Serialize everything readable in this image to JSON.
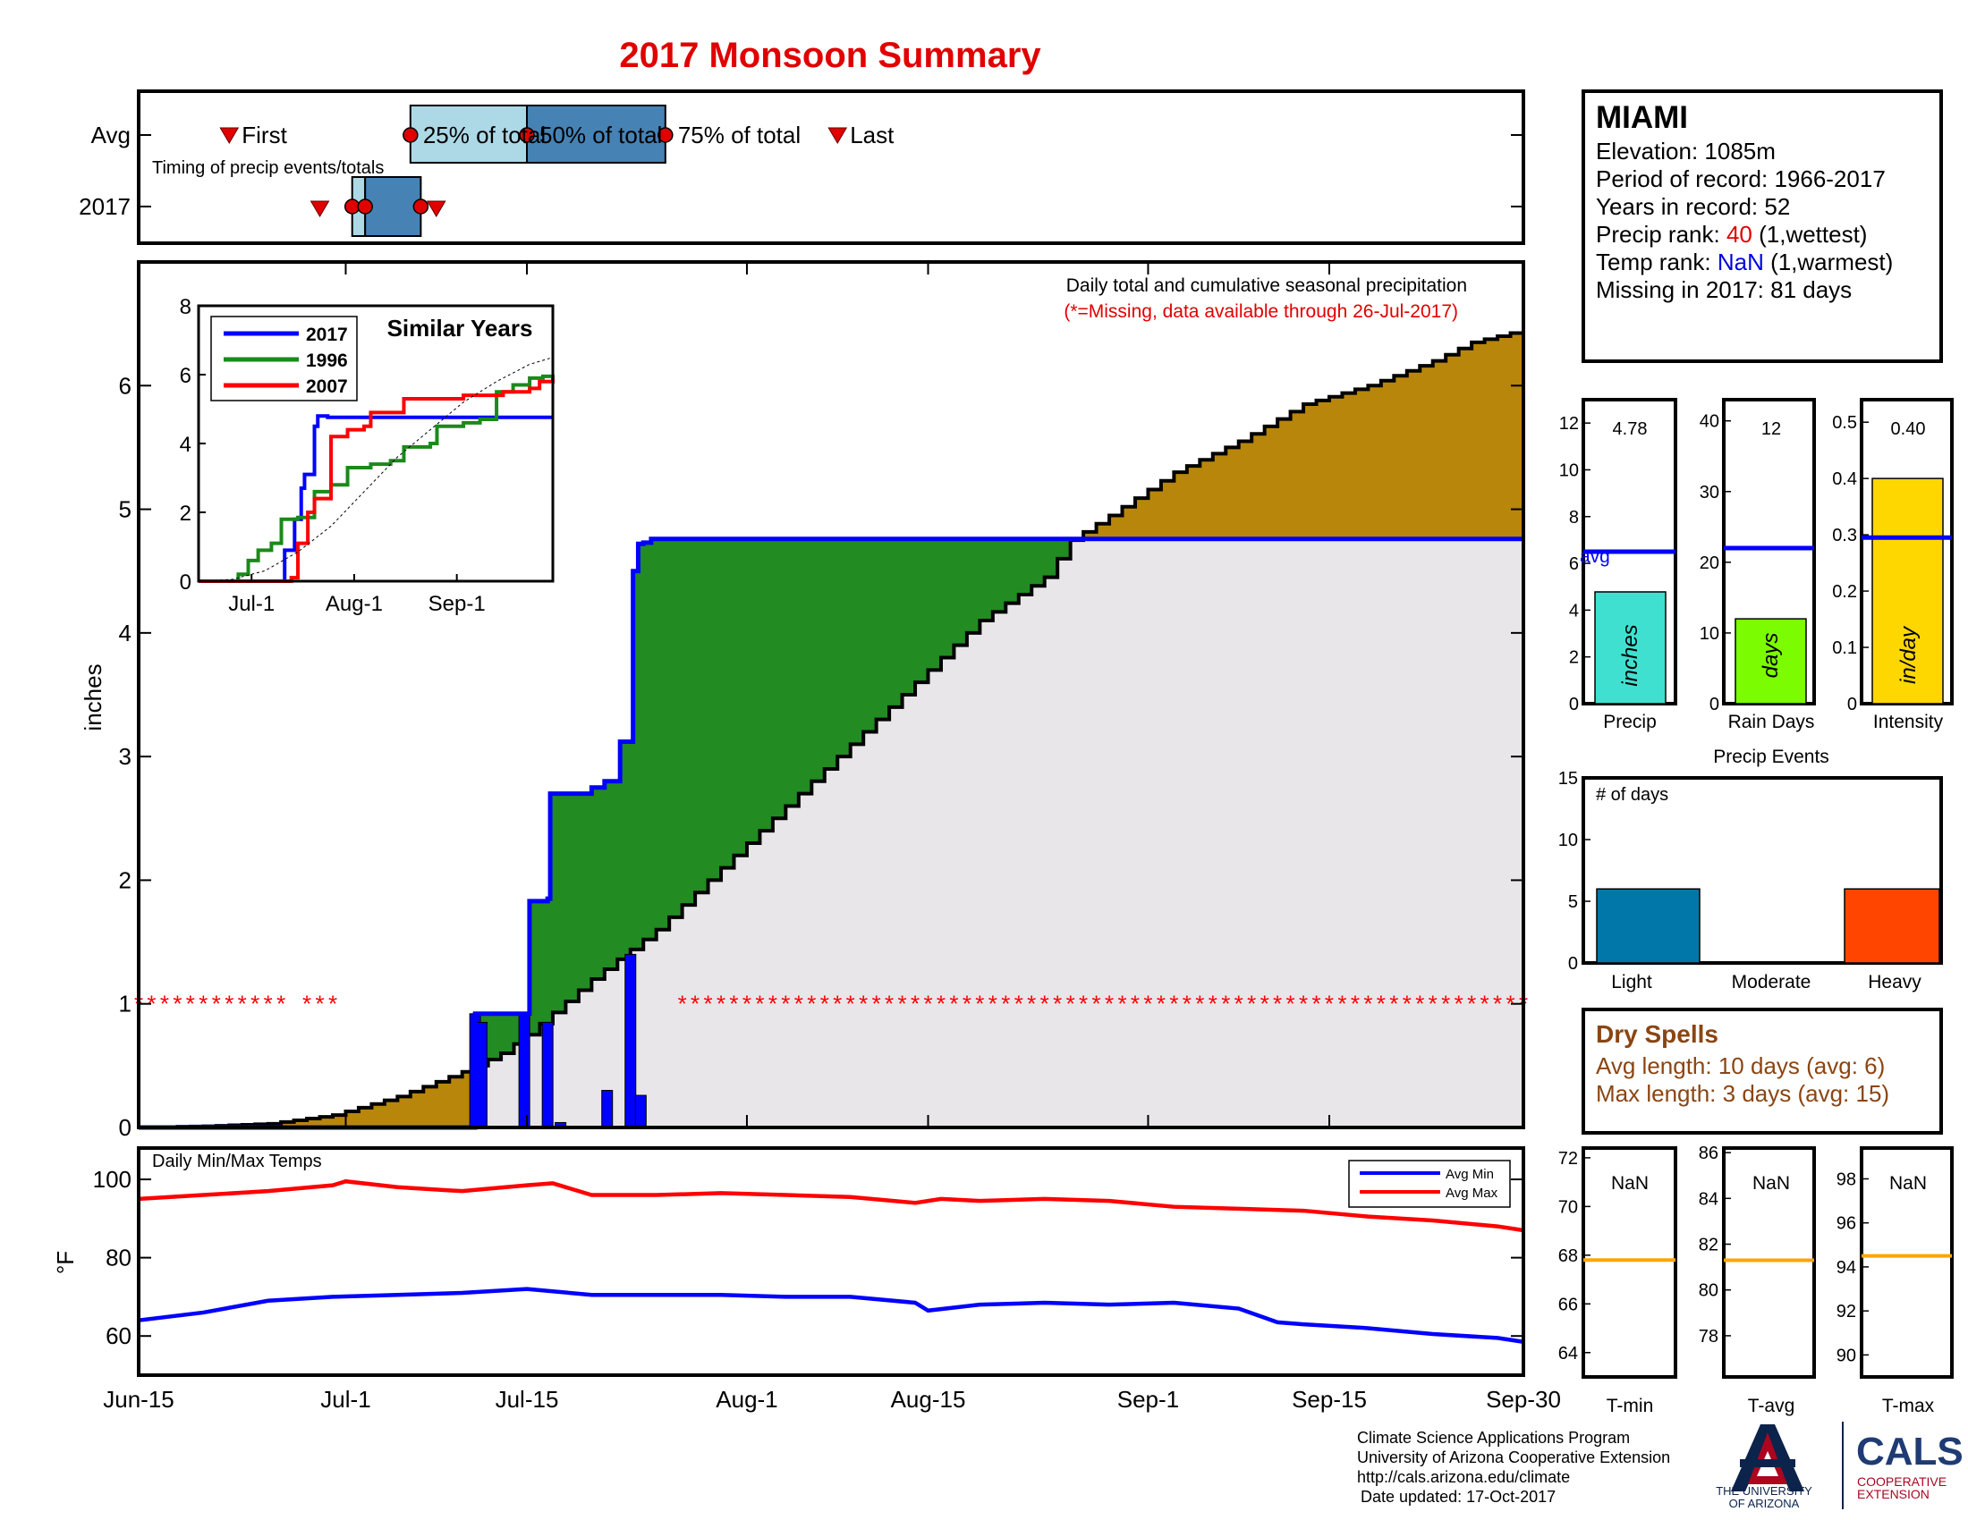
{
  "title": "2017 Monsoon Summary",
  "timing": {
    "row_avg": "Avg",
    "row_year": "2017",
    "subtitle": "Timing of precip events/totals",
    "first": "First",
    "last": "Last",
    "p25": "25% of total",
    "p50": "50% of total",
    "p75": "75% of total",
    "avg_days": {
      "first": 7,
      "p25": 21,
      "p50": 30,
      "p75": 40.7,
      "last": 54
    },
    "year_days": {
      "first": 14,
      "p25": 16.5,
      "p50": 17.5,
      "p75": 21.8,
      "last": 23
    }
  },
  "station": {
    "name": "MIAMI",
    "elevation_label": "Elevation: ",
    "elevation": "1085m",
    "period_label": "Period of record: ",
    "period": "1966-2017",
    "years_label": "Years in record: ",
    "years": "52",
    "precip_rank_label": "Precip rank: ",
    "precip_rank": "40",
    "precip_rank_note": " (1,wettest)",
    "temp_rank_label": "Temp rank: ",
    "temp_rank": "NaN",
    "temp_rank_note": " (1,warmest)",
    "missing_label": "Missing in 2017: ",
    "missing": "81 days"
  },
  "main_chart": {
    "note": "Daily total and cumulative seasonal precipitation",
    "missing_note": "(*=Missing, data available through 26-Jul-2017)",
    "ylabel": "inches",
    "yticks": [
      "0",
      "1",
      "2",
      "3",
      "4",
      "5",
      "6"
    ],
    "xticks": [
      "Jun-15",
      "Jul-1",
      "Jul-15",
      "Aug-1",
      "Aug-15",
      "Sep-1",
      "Sep-15",
      "Sep-30"
    ]
  },
  "inset": {
    "title": "Similar Years",
    "legend": [
      "2017",
      "1996",
      "2007"
    ],
    "yticks": [
      "0",
      "2",
      "4",
      "6",
      "8"
    ],
    "xticks": [
      "Jul-1",
      "Aug-1",
      "Sep-1"
    ]
  },
  "stats": {
    "precip": {
      "value": "4.78",
      "unit": "inches",
      "label": "Precip",
      "yticks": [
        "0",
        "2",
        "4",
        "6",
        "8",
        "10",
        "12"
      ],
      "avg_label": "avg"
    },
    "raindays": {
      "value": "12",
      "unit": "days",
      "label": "Rain Days",
      "yticks": [
        "0",
        "10",
        "20",
        "30",
        "40"
      ]
    },
    "intensity": {
      "value": "0.40",
      "unit": "in/day",
      "label": "Intensity",
      "yticks": [
        "0",
        "0.1",
        "0.2",
        "0.3",
        "0.4",
        "0.5"
      ]
    }
  },
  "events": {
    "title": "Precip Events",
    "ylabel": "# of days",
    "yticks": [
      "0",
      "5",
      "10",
      "15"
    ],
    "labels": [
      "Light",
      "Moderate",
      "Heavy"
    ]
  },
  "dry_spells": {
    "title": "Dry Spells",
    "avg": "Avg length: 10 days (avg: 6)",
    "max": "Max length: 3 days (avg: 15)"
  },
  "temps": {
    "title": "Daily Min/Max Temps",
    "ylabel": "°F",
    "yticks": [
      "60",
      "80",
      "100"
    ],
    "legend_min": "Avg Min",
    "legend_max": "Avg Max"
  },
  "temp_boxes": [
    {
      "label": "T-min",
      "value": "NaN",
      "yticks": [
        "64",
        "66",
        "68",
        "70",
        "72"
      ]
    },
    {
      "label": "T-avg",
      "value": "NaN",
      "yticks": [
        "78",
        "80",
        "82",
        "84",
        "86"
      ]
    },
    {
      "label": "T-max",
      "value": "NaN",
      "yticks": [
        "90",
        "92",
        "94",
        "96",
        "98"
      ]
    }
  ],
  "footer": {
    "line1": "Climate Science Applications Program",
    "line2": "University of Arizona Cooperative Extension",
    "line3": "http://cals.arizona.edu/climate",
    "line4": "Date updated: 17-Oct-2017",
    "ua_line1": "THE UNIVERSITY",
    "ua_line2": "OF ARIZONA",
    "cals": "CALS",
    "coop1": "COOPERATIVE",
    "coop2": "EXTENSION"
  },
  "colors": {
    "avg_fill": "#b8860b",
    "above_fill": "#228b22",
    "base_fill": "#e8e6e8",
    "blue": "#0000ff",
    "red": "#ff0000",
    "green": "#1a8a1a",
    "q_light": "#add8e6",
    "q_dark": "#4682b4",
    "cyan_bar": "#40e0d0",
    "green_bar": "#7cfc00",
    "gold_bar": "#ffd700",
    "light_bar": "#0077a8",
    "heavy_bar": "#ff4500",
    "dry_brown": "#8b4513",
    "orange_line": "#ffa500",
    "ua_navy": "#0c234b",
    "ua_red": "#ab0520"
  },
  "chart_data": [
    {
      "type": "area",
      "title": "Daily total and cumulative seasonal precipitation",
      "xlabel": "",
      "ylabel": "inches",
      "xlim": [
        0,
        107
      ],
      "ylim": [
        0,
        7
      ],
      "x_tick_days": [
        0,
        16,
        30,
        47,
        61,
        78,
        92,
        107
      ],
      "avg_cumulative": {
        "x": [
          0,
          5,
          10,
          15,
          20,
          25,
          28,
          30,
          35,
          40,
          45,
          50,
          55,
          60,
          65,
          70,
          72,
          75,
          80,
          85,
          90,
          95,
          100,
          103,
          107
        ],
        "y": [
          0,
          0.01,
          0.03,
          0.1,
          0.25,
          0.45,
          0.6,
          0.75,
          1.2,
          1.6,
          2.1,
          2.6,
          3.1,
          3.6,
          4.1,
          4.45,
          4.75,
          4.95,
          5.3,
          5.55,
          5.85,
          6.0,
          6.2,
          6.35,
          6.45
        ]
      },
      "series_2017_cumulative": {
        "x": [
          0,
          25.8,
          26,
          30,
          30.2,
          31.6,
          31.8,
          35,
          36,
          37.2,
          38.2,
          38.6,
          39,
          39.6,
          107
        ],
        "y": [
          0,
          0,
          0.92,
          0.92,
          1.83,
          1.85,
          2.7,
          2.75,
          2.8,
          3.12,
          4.5,
          4.72,
          4.73,
          4.76,
          4.76
        ]
      },
      "daily_2017": {
        "days": [
          26,
          26.5,
          29.8,
          31.6,
          32.6,
          36.2,
          38,
          38.8
        ],
        "values": [
          0.92,
          0.85,
          0.92,
          0.85,
          0.04,
          0.3,
          1.4,
          0.26
        ]
      },
      "missing_days": [
        0,
        1,
        2,
        3,
        4,
        5,
        6,
        7,
        8,
        9,
        10,
        11,
        13,
        14,
        15,
        42,
        43,
        44,
        45,
        46,
        47,
        48,
        49,
        50,
        51,
        52,
        53,
        54,
        55,
        56,
        57,
        58,
        59,
        60,
        61,
        62,
        63,
        64,
        65,
        66,
        67,
        68,
        69,
        70,
        71,
        72,
        73,
        74,
        75,
        76,
        77,
        78,
        79,
        80,
        81,
        82,
        83,
        84,
        85,
        86,
        87,
        88,
        89,
        90,
        91,
        92,
        93,
        94,
        95,
        96,
        97,
        98,
        99,
        100,
        101,
        102,
        103,
        104,
        105,
        106,
        107
      ]
    },
    {
      "type": "line",
      "title": "Similar Years",
      "ylim": [
        0,
        8
      ],
      "x_tick_days": [
        16,
        47,
        78
      ],
      "series": [
        {
          "name": "2017",
          "x": [
            25,
            26,
            29,
            31,
            32,
            35,
            36,
            39,
            107
          ],
          "y": [
            0,
            0.9,
            1.8,
            2.7,
            3.1,
            4.5,
            4.8,
            4.76,
            4.76
          ]
        },
        {
          "name": "1996",
          "x": [
            0,
            12,
            15,
            18,
            22,
            25,
            30,
            35,
            40,
            45,
            52,
            58,
            62,
            70,
            72,
            80,
            85,
            90,
            95,
            100,
            104,
            107
          ],
          "y": [
            0,
            0.2,
            0.6,
            0.9,
            1.1,
            1.8,
            1.85,
            2.6,
            2.8,
            3.3,
            3.4,
            3.5,
            3.9,
            4.0,
            4.5,
            4.6,
            4.7,
            5.5,
            5.7,
            5.9,
            5.95,
            6.0
          ]
        },
        {
          "name": "2007",
          "x": [
            0,
            28,
            30,
            33,
            35,
            38,
            40,
            45,
            50,
            52,
            58,
            62,
            70,
            75,
            80,
            85,
            92,
            95,
            100,
            103,
            107
          ],
          "y": [
            0,
            0.1,
            1.1,
            2.0,
            2.4,
            2.4,
            4.2,
            4.4,
            4.5,
            4.9,
            4.9,
            5.3,
            5.3,
            5.3,
            5.4,
            5.4,
            5.5,
            5.5,
            5.6,
            5.8,
            5.9
          ]
        },
        {
          "name": "average",
          "x": [
            0,
            10,
            20,
            30,
            40,
            50,
            60,
            70,
            80,
            90,
            100,
            107
          ],
          "y": [
            0,
            0.05,
            0.3,
            0.85,
            1.6,
            2.6,
            3.6,
            4.4,
            5.2,
            5.8,
            6.3,
            6.5
          ]
        }
      ]
    },
    {
      "type": "bar",
      "title": "Precip",
      "categories": [
        "Precip"
      ],
      "values": [
        4.78
      ],
      "avg": 6.5,
      "ylim": [
        0,
        13
      ]
    },
    {
      "type": "bar",
      "title": "Rain Days",
      "categories": [
        "Rain Days"
      ],
      "values": [
        12
      ],
      "avg": 22,
      "ylim": [
        0,
        43
      ]
    },
    {
      "type": "bar",
      "title": "Intensity",
      "categories": [
        "Intensity"
      ],
      "values": [
        0.4
      ],
      "avg": 0.295,
      "ylim": [
        0,
        0.54
      ]
    },
    {
      "type": "bar",
      "title": "Precip Events",
      "categories": [
        "Light",
        "Moderate",
        "Heavy"
      ],
      "values": [
        6,
        0,
        6
      ],
      "ylim": [
        0,
        15
      ]
    },
    {
      "type": "line",
      "title": "Daily Min/Max Temps",
      "ylabel": "°F",
      "xlim": [
        0,
        107
      ],
      "ylim": [
        50,
        108
      ],
      "series": [
        {
          "name": "Avg Max",
          "x": [
            0,
            5,
            10,
            15,
            16,
            20,
            25,
            30,
            32,
            35,
            40,
            45,
            50,
            55,
            60,
            62,
            65,
            70,
            75,
            80,
            85,
            90,
            95,
            100,
            105,
            107
          ],
          "y": [
            95,
            96,
            97,
            98.5,
            99.5,
            98,
            97,
            98.5,
            99,
            96,
            96,
            96.5,
            96,
            95.5,
            94,
            95,
            94.5,
            95,
            94.5,
            93,
            92.5,
            92,
            90.5,
            89.5,
            88,
            87
          ]
        },
        {
          "name": "Avg Min",
          "x": [
            0,
            5,
            10,
            15,
            20,
            25,
            30,
            35,
            40,
            45,
            50,
            55,
            60,
            61,
            65,
            70,
            75,
            80,
            85,
            88,
            90,
            95,
            100,
            105,
            107
          ],
          "y": [
            64,
            66,
            69,
            70,
            70.5,
            71,
            72,
            70.5,
            70.5,
            70.5,
            70,
            70,
            68.5,
            66.5,
            68,
            68.5,
            68,
            68.5,
            67,
            63.5,
            63,
            62,
            60.5,
            59.5,
            58.5
          ]
        }
      ]
    },
    {
      "type": "bar",
      "title": "T-min",
      "categories": [
        "T-min"
      ],
      "values": [
        null
      ],
      "avg": 67.8,
      "ylim": [
        63,
        72.4
      ]
    },
    {
      "type": "bar",
      "title": "T-avg",
      "categories": [
        "T-avg"
      ],
      "values": [
        null
      ],
      "avg": 81.3,
      "ylim": [
        76.2,
        86.2
      ]
    },
    {
      "type": "bar",
      "title": "T-max",
      "categories": [
        "T-max"
      ],
      "values": [
        null
      ],
      "avg": 94.5,
      "ylim": [
        89,
        99.4
      ]
    }
  ]
}
